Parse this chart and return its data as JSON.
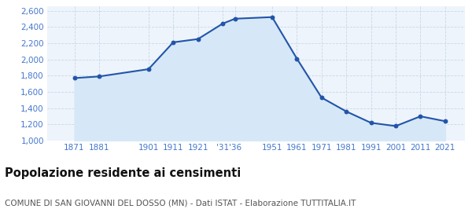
{
  "years": [
    1871,
    1881,
    1901,
    1911,
    1921,
    1931,
    1936,
    1951,
    1961,
    1971,
    1981,
    1991,
    2001,
    2011,
    2021
  ],
  "population": [
    1771,
    1791,
    1881,
    2211,
    2251,
    2441,
    2501,
    2521,
    2011,
    1531,
    1361,
    1221,
    1181,
    1301,
    1241
  ],
  "line_color": "#2255aa",
  "fill_color": "#d6e8f7",
  "marker_color": "#2255aa",
  "bg_color": "#eef4fb",
  "grid_color": "#c8d8e8",
  "title": "Popolazione residente ai censimenti",
  "subtitle": "COMUNE DI SAN GIOVANNI DEL DOSSO (MN) - Dati ISTAT - Elaborazione TUTTITALIA.IT",
  "ylim": [
    1000,
    2650
  ],
  "yticks": [
    1000,
    1200,
    1400,
    1600,
    1800,
    2000,
    2200,
    2400,
    2600
  ],
  "xtick_positions": [
    1871,
    1881,
    1901,
    1911,
    1921,
    1931,
    1936,
    1951,
    1961,
    1971,
    1981,
    1991,
    2001,
    2011,
    2021
  ],
  "xtick_labels": [
    "1871",
    "1881",
    "1901",
    "1911",
    "1921",
    "'31",
    "'36",
    "1951",
    "1961",
    "1971",
    "1981",
    "1991",
    "2001",
    "2011",
    "2021"
  ],
  "title_fontsize": 10.5,
  "subtitle_fontsize": 7.5,
  "tick_fontsize": 7.5,
  "tick_label_color": "#4477cc",
  "title_color": "#111111",
  "subtitle_color": "#555555",
  "xlim": [
    1860,
    2029
  ]
}
